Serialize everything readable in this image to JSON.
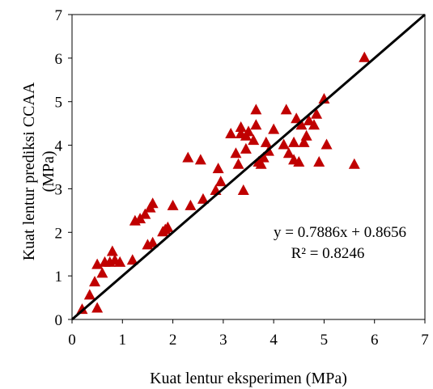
{
  "chart_data": {
    "type": "scatter",
    "title": "",
    "xlabel": "Kuat lentur eksperimen (MPa)",
    "ylabel": [
      "Kuat lentur prediksi CCAA",
      "(MPa)"
    ],
    "xlim": [
      0,
      7
    ],
    "ylim": [
      0,
      7
    ],
    "xticks": [
      "0",
      "1",
      "2",
      "3",
      "4",
      "5",
      "6",
      "7"
    ],
    "yticks": [
      "0",
      "1",
      "2",
      "3",
      "4",
      "5",
      "6",
      "7"
    ],
    "grid": false,
    "legend": "none",
    "marker": "triangle",
    "marker_color": "#C00000",
    "fit_line_color": "#000000",
    "annotation": {
      "equation": "y = 0.7886x + 0.8656",
      "r_squared": "R² = 0.8246"
    },
    "fit_line": {
      "slope": 1,
      "intercept": 0,
      "x_range": [
        0,
        7
      ]
    },
    "points": [
      {
        "x": 0.2,
        "y": 0.22
      },
      {
        "x": 0.35,
        "y": 0.55
      },
      {
        "x": 0.45,
        "y": 0.85
      },
      {
        "x": 0.5,
        "y": 0.25
      },
      {
        "x": 0.5,
        "y": 1.25
      },
      {
        "x": 0.6,
        "y": 1.05
      },
      {
        "x": 0.65,
        "y": 1.3
      },
      {
        "x": 0.75,
        "y": 1.3
      },
      {
        "x": 0.8,
        "y": 1.55
      },
      {
        "x": 0.85,
        "y": 1.35
      },
      {
        "x": 0.95,
        "y": 1.3
      },
      {
        "x": 1.2,
        "y": 1.35
      },
      {
        "x": 1.25,
        "y": 2.25
      },
      {
        "x": 1.35,
        "y": 2.3
      },
      {
        "x": 1.45,
        "y": 2.4
      },
      {
        "x": 1.5,
        "y": 1.7
      },
      {
        "x": 1.55,
        "y": 2.55
      },
      {
        "x": 1.6,
        "y": 1.75
      },
      {
        "x": 1.6,
        "y": 2.65
      },
      {
        "x": 1.8,
        "y": 2.0
      },
      {
        "x": 1.85,
        "y": 2.05
      },
      {
        "x": 1.9,
        "y": 2.1
      },
      {
        "x": 2.0,
        "y": 2.6
      },
      {
        "x": 2.3,
        "y": 3.7
      },
      {
        "x": 2.35,
        "y": 2.6
      },
      {
        "x": 2.55,
        "y": 3.65
      },
      {
        "x": 2.6,
        "y": 2.75
      },
      {
        "x": 2.85,
        "y": 2.95
      },
      {
        "x": 2.9,
        "y": 3.45
      },
      {
        "x": 2.95,
        "y": 3.15
      },
      {
        "x": 3.15,
        "y": 4.25
      },
      {
        "x": 3.25,
        "y": 3.8
      },
      {
        "x": 3.3,
        "y": 3.55
      },
      {
        "x": 3.35,
        "y": 4.25
      },
      {
        "x": 3.35,
        "y": 4.4
      },
      {
        "x": 3.4,
        "y": 2.95
      },
      {
        "x": 3.45,
        "y": 4.2
      },
      {
        "x": 3.45,
        "y": 3.9
      },
      {
        "x": 3.5,
        "y": 4.3
      },
      {
        "x": 3.6,
        "y": 4.1
      },
      {
        "x": 3.65,
        "y": 4.8
      },
      {
        "x": 3.65,
        "y": 4.45
      },
      {
        "x": 3.7,
        "y": 3.6
      },
      {
        "x": 3.75,
        "y": 3.55
      },
      {
        "x": 3.8,
        "y": 3.7
      },
      {
        "x": 3.85,
        "y": 4.05
      },
      {
        "x": 3.9,
        "y": 3.85
      },
      {
        "x": 4.0,
        "y": 4.35
      },
      {
        "x": 4.2,
        "y": 4.0
      },
      {
        "x": 4.25,
        "y": 4.8
      },
      {
        "x": 4.3,
        "y": 3.8
      },
      {
        "x": 4.4,
        "y": 3.65
      },
      {
        "x": 4.4,
        "y": 4.05
      },
      {
        "x": 4.45,
        "y": 4.6
      },
      {
        "x": 4.5,
        "y": 3.6
      },
      {
        "x": 4.55,
        "y": 4.45
      },
      {
        "x": 4.6,
        "y": 4.05
      },
      {
        "x": 4.65,
        "y": 4.2
      },
      {
        "x": 4.7,
        "y": 4.55
      },
      {
        "x": 4.8,
        "y": 4.45
      },
      {
        "x": 4.85,
        "y": 4.7
      },
      {
        "x": 4.9,
        "y": 3.6
      },
      {
        "x": 5.0,
        "y": 5.05
      },
      {
        "x": 5.05,
        "y": 4.0
      },
      {
        "x": 5.6,
        "y": 3.55
      },
      {
        "x": 5.8,
        "y": 6.0
      }
    ]
  }
}
